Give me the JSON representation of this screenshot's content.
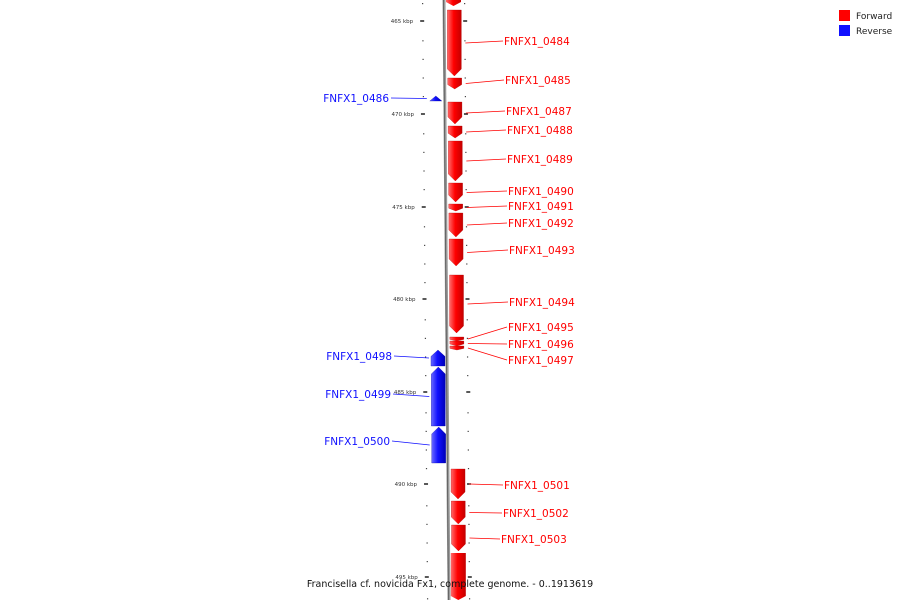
{
  "legend": [
    {
      "label": "Forward",
      "color": "#ff0000"
    },
    {
      "label": "Reverse",
      "color": "#1010ff"
    }
  ],
  "caption": "Francisella cf. novicida Fx1, complete genome. - 0..1913619",
  "colors": {
    "forward": "#ff0000",
    "reverse": "#1010ff",
    "backbone": "#8a8a8a"
  },
  "ticks": [
    {
      "label": "465 kbp"
    },
    {
      "label": "470 kbp"
    },
    {
      "label": "475 kbp"
    },
    {
      "label": "480 kbp"
    },
    {
      "label": "485 kbp"
    },
    {
      "label": "490 kbp"
    },
    {
      "label": "495 kbp"
    }
  ],
  "genes": [
    {
      "id": "FNFX1_0484",
      "strand": "forward"
    },
    {
      "id": "FNFX1_0485",
      "strand": "forward"
    },
    {
      "id": "FNFX1_0486",
      "strand": "reverse"
    },
    {
      "id": "FNFX1_0487",
      "strand": "forward"
    },
    {
      "id": "FNFX1_0488",
      "strand": "forward"
    },
    {
      "id": "FNFX1_0489",
      "strand": "forward"
    },
    {
      "id": "FNFX1_0490",
      "strand": "forward"
    },
    {
      "id": "FNFX1_0491",
      "strand": "forward"
    },
    {
      "id": "FNFX1_0492",
      "strand": "forward"
    },
    {
      "id": "FNFX1_0493",
      "strand": "forward"
    },
    {
      "id": "FNFX1_0494",
      "strand": "forward"
    },
    {
      "id": "FNFX1_0495",
      "strand": "forward"
    },
    {
      "id": "FNFX1_0496",
      "strand": "forward"
    },
    {
      "id": "FNFX1_0497",
      "strand": "forward"
    },
    {
      "id": "FNFX1_0498",
      "strand": "reverse"
    },
    {
      "id": "FNFX1_0499",
      "strand": "reverse"
    },
    {
      "id": "FNFX1_0500",
      "strand": "reverse"
    },
    {
      "id": "FNFX1_0501",
      "strand": "forward"
    },
    {
      "id": "FNFX1_0502",
      "strand": "forward"
    },
    {
      "id": "FNFX1_0503",
      "strand": "forward"
    }
  ]
}
